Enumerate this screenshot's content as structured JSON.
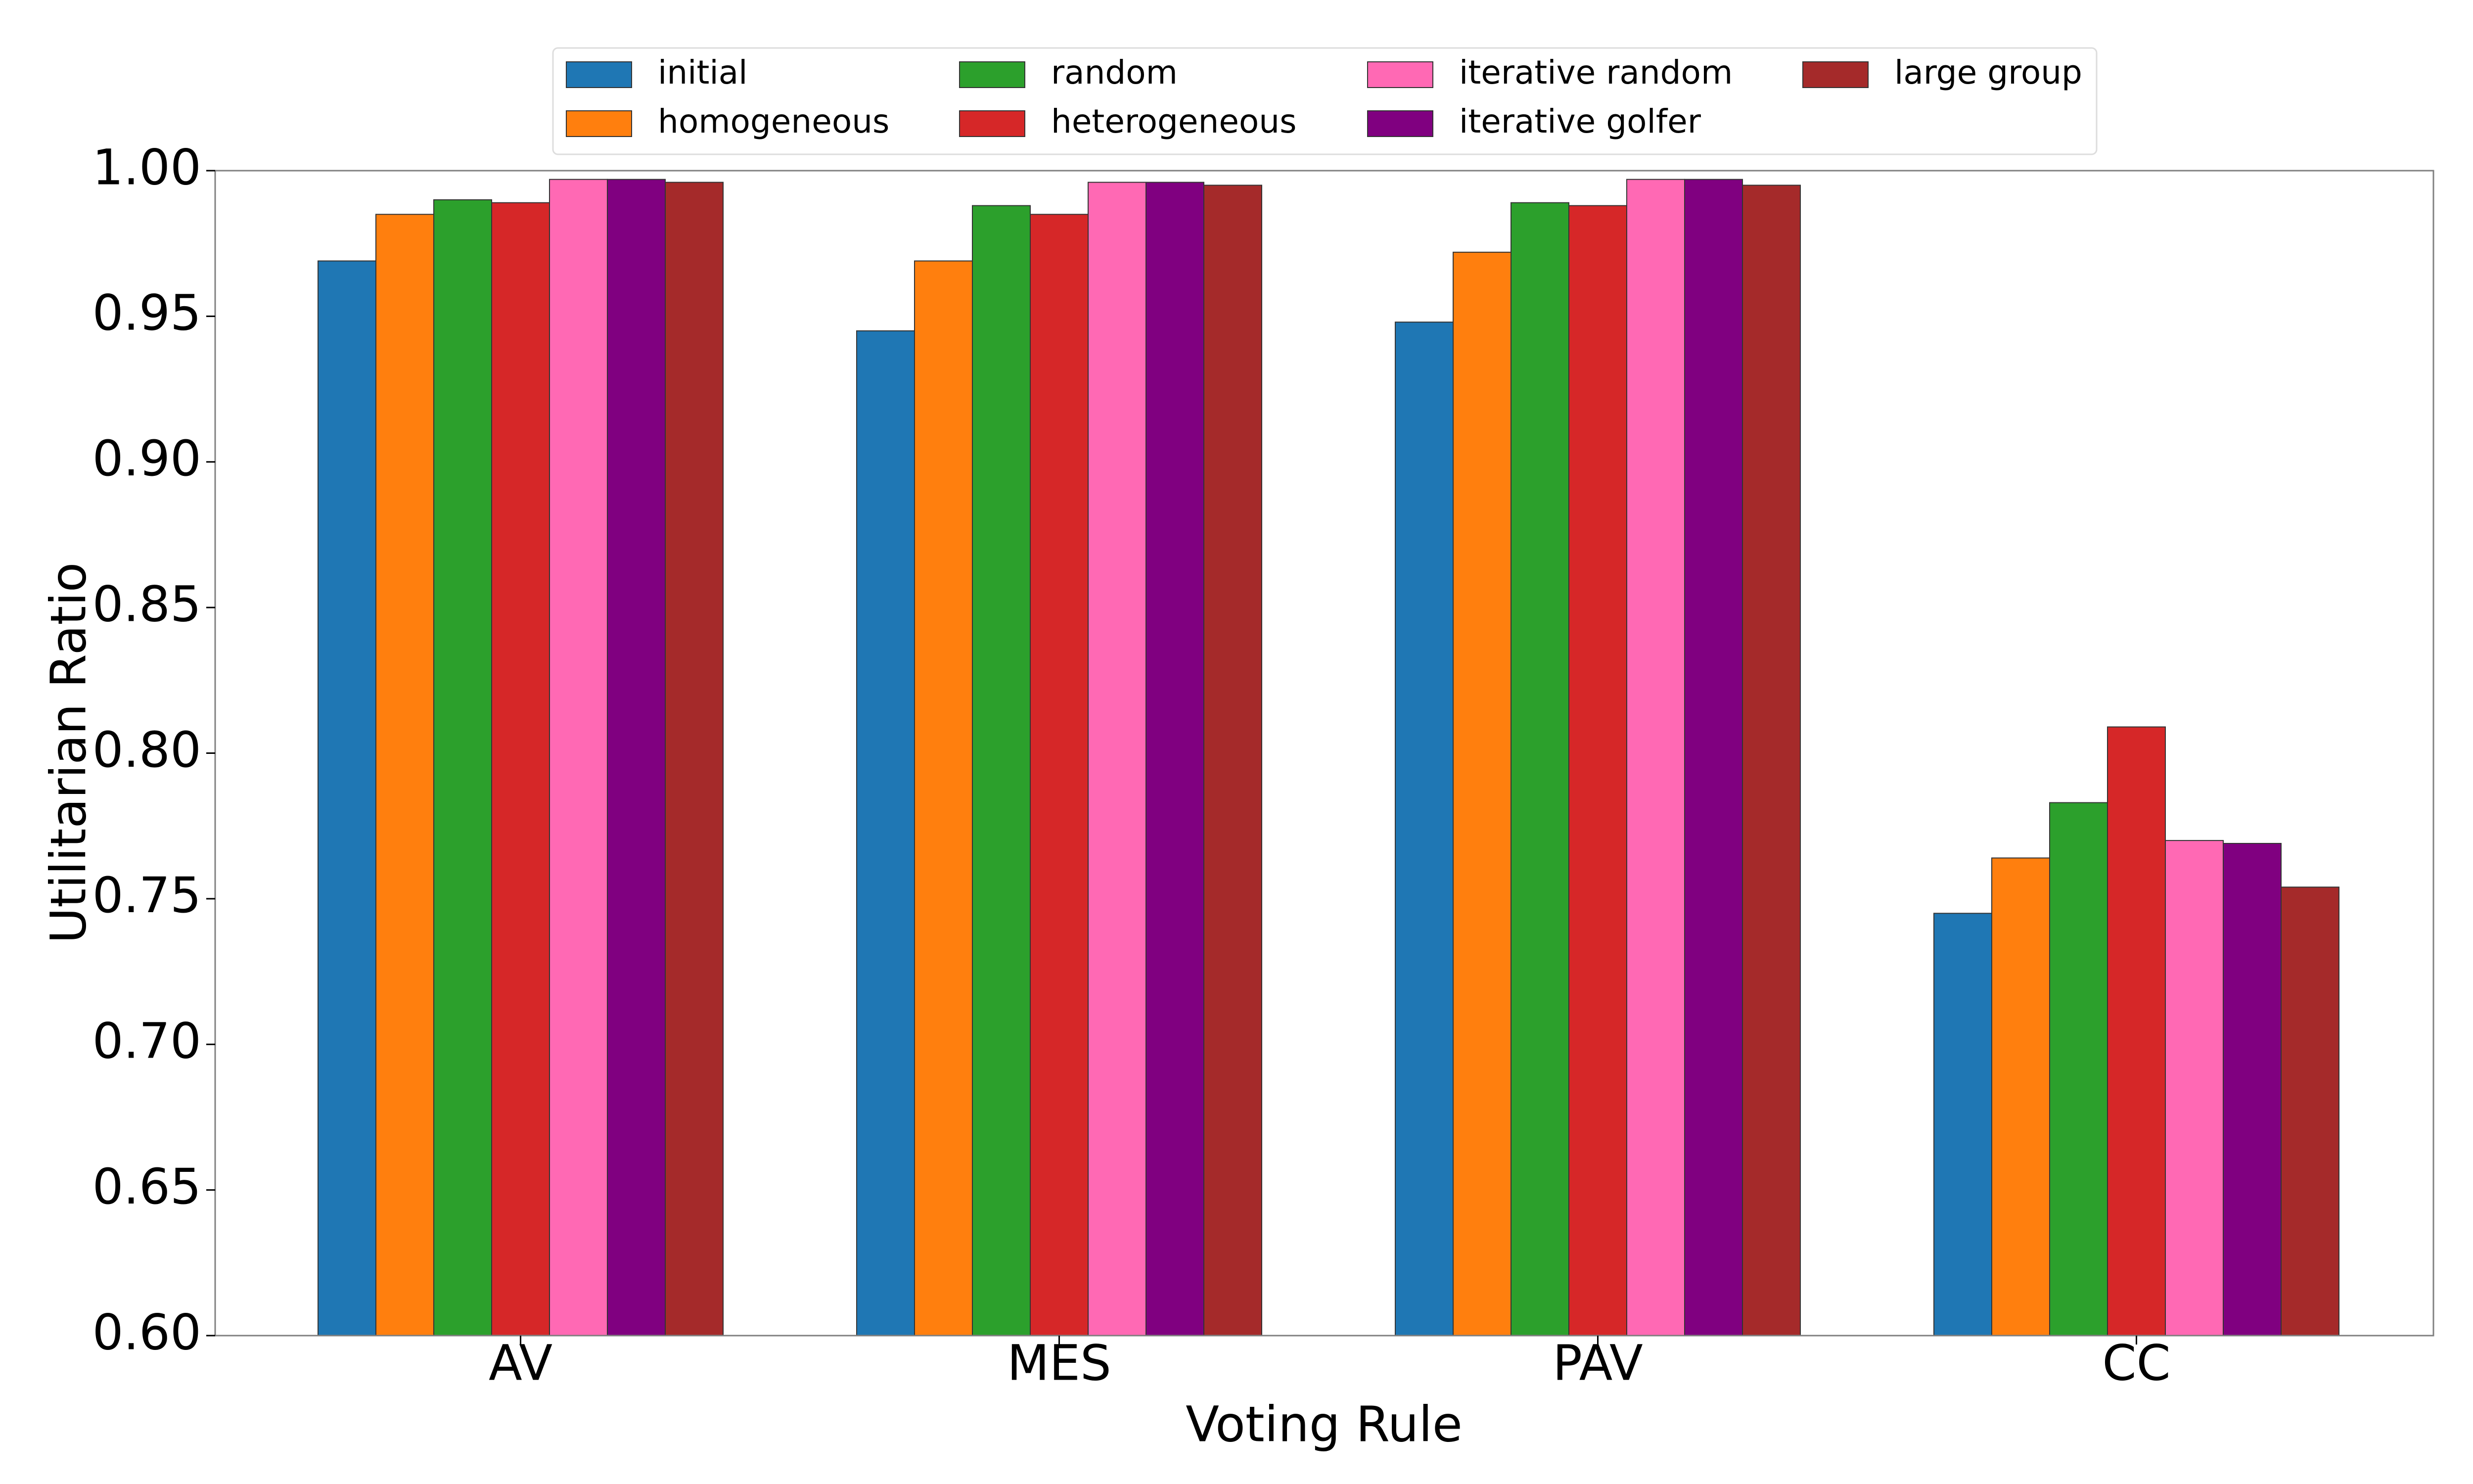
{
  "chart_data": {
    "type": "bar",
    "title": "",
    "xlabel": "Voting Rule",
    "ylabel": "Utilitarian Ratio",
    "categories": [
      "AV",
      "MES",
      "PAV",
      "CC"
    ],
    "ylim": [
      0.6,
      1.0
    ],
    "yticks": [
      "0.60",
      "0.65",
      "0.70",
      "0.75",
      "0.80",
      "0.85",
      "0.90",
      "0.95",
      "1.00"
    ],
    "grid": false,
    "legend_position": "top-center",
    "series": [
      {
        "name": "initial",
        "color": "#1f77b4",
        "values": [
          0.969,
          0.945,
          0.948,
          0.745
        ]
      },
      {
        "name": "homogeneous",
        "color": "#ff7f0e",
        "values": [
          0.985,
          0.969,
          0.972,
          0.764
        ]
      },
      {
        "name": "random",
        "color": "#2ca02c",
        "values": [
          0.99,
          0.988,
          0.989,
          0.783
        ]
      },
      {
        "name": "heterogeneous",
        "color": "#d62728",
        "values": [
          0.989,
          0.985,
          0.988,
          0.809
        ]
      },
      {
        "name": "iterative random",
        "color": "#ff69b4",
        "values": [
          0.997,
          0.996,
          0.997,
          0.77
        ]
      },
      {
        "name": "iterative golfer",
        "color": "#800080",
        "values": [
          0.997,
          0.996,
          0.997,
          0.769
        ]
      },
      {
        "name": "large group",
        "color": "#a52a2a",
        "values": [
          0.996,
          0.995,
          0.995,
          0.754
        ]
      }
    ]
  }
}
